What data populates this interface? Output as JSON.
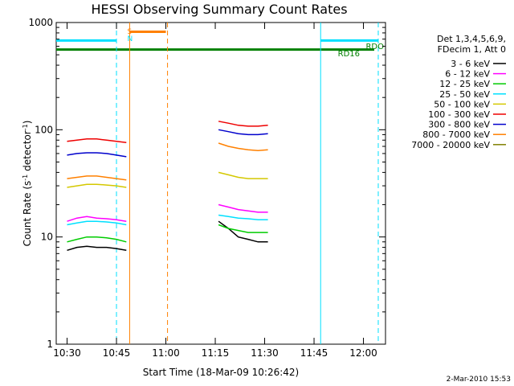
{
  "chart_data": {
    "type": "line",
    "title": "HESSI Observing Summary Count Rates",
    "xlabel": "Start Time (18-Mar-09 10:26:42)",
    "ylabel_main": "Count Rate (s",
    "ylabel_sup1": "-1",
    "ylabel_mid": " detector",
    "ylabel_sup2": "-1",
    "ylabel_end": ")",
    "y_scale": "log",
    "ylim": [
      1,
      1000
    ],
    "xlim_minutes": [
      26.7,
      67.0
    ],
    "x_ticks": [
      {
        "label": "10:30",
        "minute": 30
      },
      {
        "label": "10:45",
        "minute": 45
      },
      {
        "label": "11:00",
        "minute": 60
      },
      {
        "label": "11:15",
        "minute": 75
      },
      {
        "label": "11:30",
        "minute": 90
      },
      {
        "label": "11:45",
        "minute": 105
      },
      {
        "label": "12:00",
        "minute": 120
      }
    ],
    "x_minute_range": [
      26.7,
      126.7
    ],
    "y_ticks": [
      {
        "label": "1",
        "value": 1
      },
      {
        "label": "10",
        "value": 10
      },
      {
        "label": "100",
        "value": 100
      },
      {
        "label": "1000",
        "value": 1000
      }
    ],
    "legend_header": [
      "Det 1,3,4,5,6,9,",
      "FDecim 1, Att 0"
    ],
    "series": [
      {
        "name": "3 - 6 keV",
        "color": "#000000",
        "segments": [
          {
            "x": [
              30,
              33,
              36,
              39,
              42,
              45,
              48
            ],
            "y": [
              7.5,
              8,
              8.2,
              8,
              8,
              7.8,
              7.5
            ]
          },
          {
            "x": [
              76,
              79,
              82,
              85,
              88,
              91
            ],
            "y": [
              14,
              12,
              10,
              9.5,
              9,
              9
            ]
          }
        ]
      },
      {
        "name": "6 - 12 keV",
        "color": "#ff00ff",
        "segments": [
          {
            "x": [
              30,
              33,
              36,
              39,
              42,
              45,
              48
            ],
            "y": [
              14,
              15,
              15.5,
              15,
              14.8,
              14.5,
              14
            ]
          },
          {
            "x": [
              76,
              79,
              82,
              85,
              88,
              91
            ],
            "y": [
              20,
              19,
              18,
              17.5,
              17,
              17
            ]
          }
        ]
      },
      {
        "name": "12 - 25 keV",
        "color": "#00cc00",
        "segments": [
          {
            "x": [
              30,
              33,
              36,
              39,
              42,
              45,
              48
            ],
            "y": [
              9,
              9.5,
              10,
              10,
              9.8,
              9.5,
              9
            ]
          },
          {
            "x": [
              76,
              79,
              82,
              85,
              88,
              91
            ],
            "y": [
              13,
              12,
              11.5,
              11,
              11,
              11
            ]
          }
        ]
      },
      {
        "name": "25 - 50 keV",
        "color": "#00e0ff",
        "segments": [
          {
            "x": [
              30,
              33,
              36,
              39,
              42,
              45,
              48
            ],
            "y": [
              13,
              13.5,
              14,
              14,
              13.8,
              13.5,
              13
            ]
          },
          {
            "x": [
              76,
              79,
              82,
              85,
              88,
              91
            ],
            "y": [
              16,
              15.5,
              15,
              14.8,
              14.5,
              14.5
            ]
          }
        ]
      },
      {
        "name": "50 - 100 keV",
        "color": "#d4c800",
        "segments": [
          {
            "x": [
              30,
              33,
              36,
              39,
              42,
              45,
              48
            ],
            "y": [
              29,
              30,
              31,
              31,
              30.5,
              30,
              29
            ]
          },
          {
            "x": [
              76,
              79,
              82,
              85,
              88,
              91
            ],
            "y": [
              40,
              38,
              36,
              35,
              35,
              35
            ]
          }
        ]
      },
      {
        "name": "100 - 300 keV",
        "color": "#ee0000",
        "segments": [
          {
            "x": [
              30,
              33,
              36,
              39,
              42,
              45,
              48
            ],
            "y": [
              78,
              80,
              82,
              82,
              80,
              78,
              76
            ]
          },
          {
            "x": [
              76,
              79,
              82,
              85,
              88,
              91
            ],
            "y": [
              120,
              115,
              110,
              108,
              108,
              110
            ]
          }
        ]
      },
      {
        "name": "300 - 800 keV",
        "color": "#0000cc",
        "segments": [
          {
            "x": [
              30,
              33,
              36,
              39,
              42,
              45,
              48
            ],
            "y": [
              58,
              60,
              61,
              61,
              60,
              58,
              56
            ]
          },
          {
            "x": [
              76,
              79,
              82,
              85,
              88,
              91
            ],
            "y": [
              100,
              96,
              92,
              90,
              90,
              92
            ]
          }
        ]
      },
      {
        "name": "800 - 7000 keV",
        "color": "#ff8000",
        "segments": [
          {
            "x": [
              30,
              33,
              36,
              39,
              42,
              45,
              48
            ],
            "y": [
              35,
              36,
              37,
              37,
              36,
              35,
              34
            ]
          },
          {
            "x": [
              76,
              79,
              82,
              85,
              88,
              91
            ],
            "y": [
              75,
              70,
              67,
              65,
              64,
              65
            ]
          }
        ]
      },
      {
        "name": "7000 - 20000 keV",
        "color": "#808000",
        "segments": []
      }
    ],
    "annotations": {
      "s_label": "S",
      "n_label": "N",
      "rdo_label": "RDO",
      "rd16_label": "RD16",
      "saa_level": 680,
      "night_level": 560
    },
    "legend_placement": "right",
    "grid": false
  },
  "footer_timestamp": "2-Mar-2010 15:53",
  "colors": {
    "saa": "#00e0ff",
    "attenuator": "#ff8000",
    "rdo": "#008000"
  }
}
